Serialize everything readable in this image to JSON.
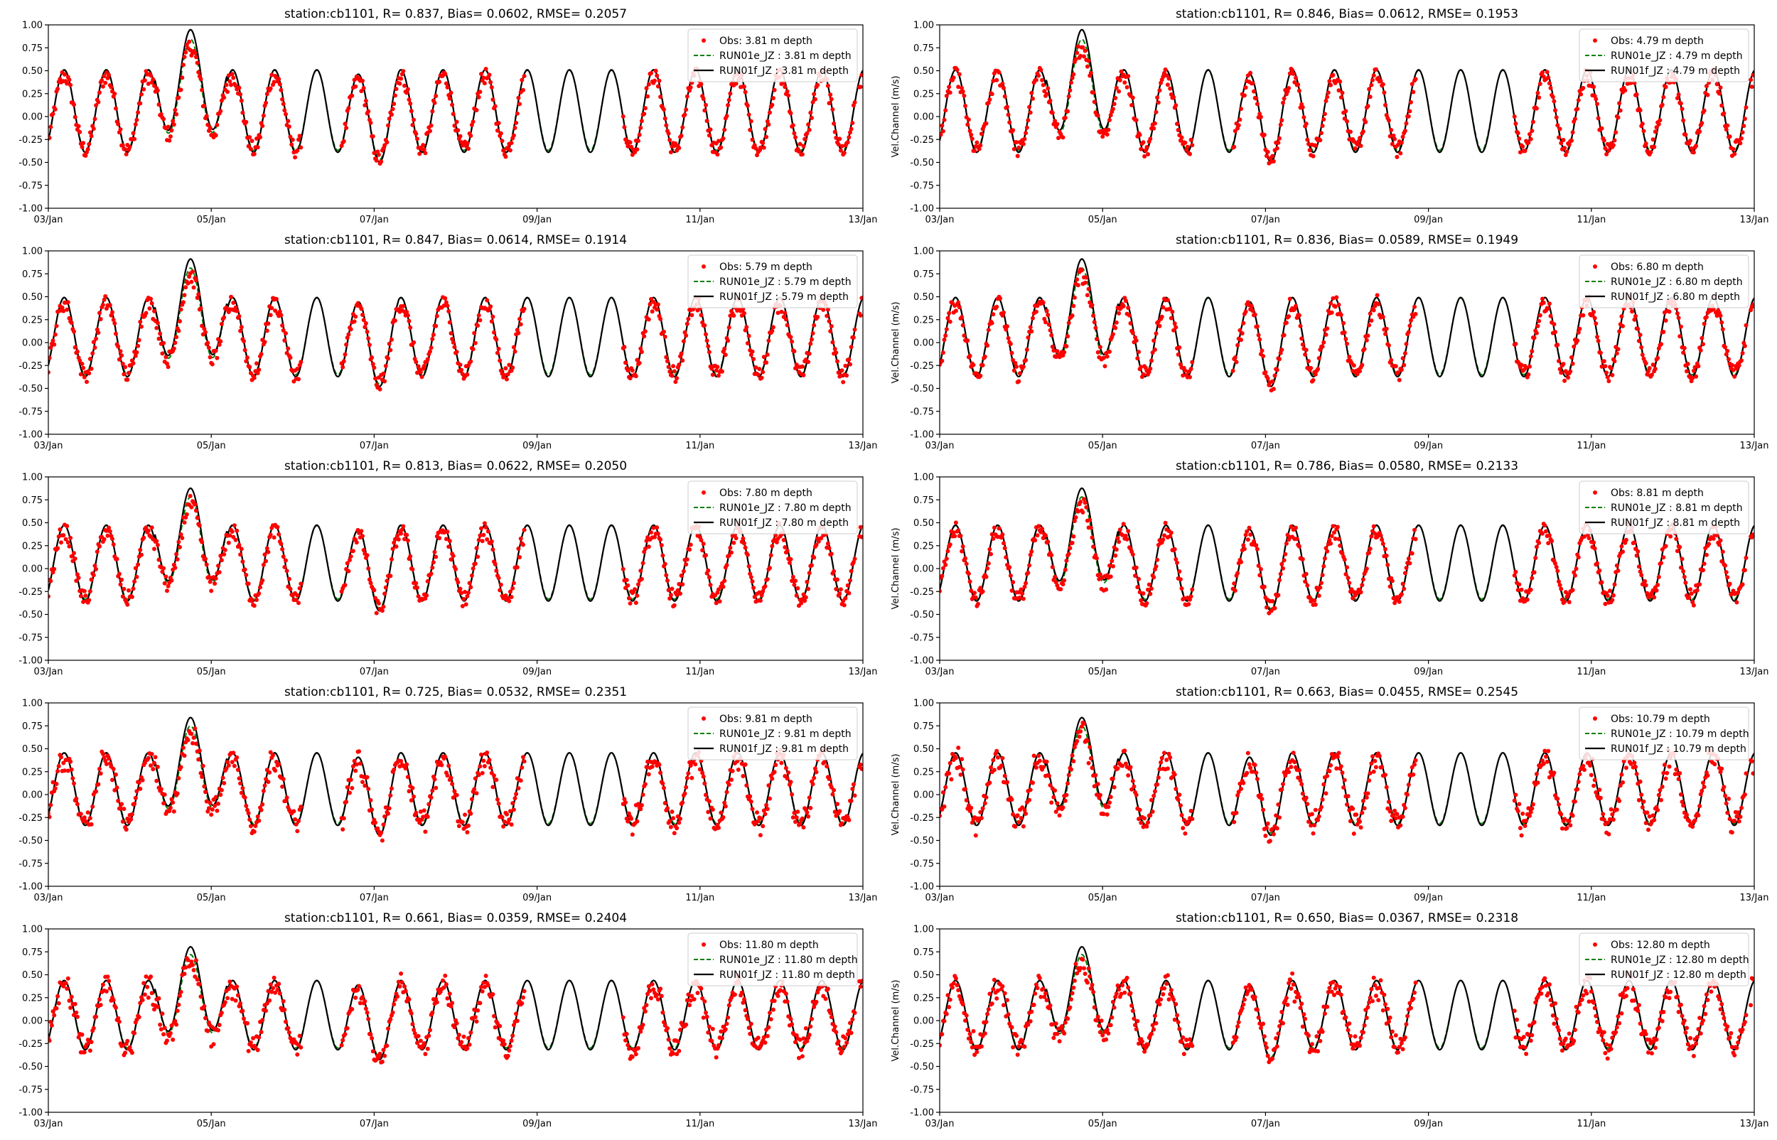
{
  "colors": {
    "obs": "#ff0000",
    "run01e": "#008000",
    "run01f": "#000000"
  },
  "chart_data": [
    {
      "type": "line",
      "title": "station:cb1101, R= 0.837, Bias= 0.0602, RMSE= 0.2057",
      "xlabel": "",
      "ylabel": "",
      "legend": [
        "Obs: 3.81 m depth",
        "RUN01e_JZ : 3.81 m depth",
        "RUN01f_JZ : 3.81 m depth"
      ],
      "legend_position": "top-right",
      "x_ticks": [
        "03/Jan",
        "05/Jan",
        "07/Jan",
        "09/Jan",
        "11/Jan",
        "13/Jan"
      ],
      "ylim": [
        -1.0,
        1.0
      ],
      "y_ticks": [
        "-1.00",
        "-0.75",
        "-0.50",
        "-0.25",
        "0.00",
        "0.25",
        "0.50",
        "0.75",
        "1.00"
      ],
      "series": [
        {
          "name": "Obs: 3.81 m depth",
          "style": "scatter"
        },
        {
          "name": "RUN01e_JZ : 3.81 m depth",
          "style": "dashed"
        },
        {
          "name": "RUN01f_JZ : 3.81 m depth",
          "style": "solid"
        }
      ]
    },
    {
      "type": "line",
      "title": "station:cb1101, R= 0.846, Bias= 0.0612, RMSE= 0.1953",
      "xlabel": "",
      "ylabel": "Vel.Channel (m/s)",
      "legend": [
        "Obs: 4.79 m depth",
        "RUN01e_JZ : 4.79 m depth",
        "RUN01f_JZ : 4.79 m depth"
      ],
      "legend_position": "top-right",
      "x_ticks": [
        "03/Jan",
        "05/Jan",
        "07/Jan",
        "09/Jan",
        "11/Jan",
        "13/Jan"
      ],
      "ylim": [
        -1.0,
        1.0
      ],
      "y_ticks": [
        "-1.00",
        "-0.75",
        "-0.50",
        "-0.25",
        "0.00",
        "0.25",
        "0.50",
        "0.75",
        "1.00"
      ],
      "series": [
        {
          "name": "Obs: 4.79 m depth",
          "style": "scatter"
        },
        {
          "name": "RUN01e_JZ : 4.79 m depth",
          "style": "dashed"
        },
        {
          "name": "RUN01f_JZ : 4.79 m depth",
          "style": "solid"
        }
      ]
    },
    {
      "type": "line",
      "title": "station:cb1101, R= 0.847, Bias= 0.0614, RMSE= 0.1914",
      "xlabel": "",
      "ylabel": "",
      "legend": [
        "Obs: 5.79 m depth",
        "RUN01e_JZ : 5.79 m depth",
        "RUN01f_JZ : 5.79 m depth"
      ],
      "legend_position": "top-right",
      "x_ticks": [
        "03/Jan",
        "05/Jan",
        "07/Jan",
        "09/Jan",
        "11/Jan",
        "13/Jan"
      ],
      "ylim": [
        -1.0,
        1.0
      ],
      "y_ticks": [
        "-1.00",
        "-0.75",
        "-0.50",
        "-0.25",
        "0.00",
        "0.25",
        "0.50",
        "0.75",
        "1.00"
      ],
      "series": [
        {
          "name": "Obs: 5.79 m depth",
          "style": "scatter"
        },
        {
          "name": "RUN01e_JZ : 5.79 m depth",
          "style": "dashed"
        },
        {
          "name": "RUN01f_JZ : 5.79 m depth",
          "style": "solid"
        }
      ]
    },
    {
      "type": "line",
      "title": "station:cb1101, R= 0.836, Bias= 0.0589, RMSE= 0.1949",
      "xlabel": "",
      "ylabel": "Vel.Channel (m/s)",
      "legend": [
        "Obs: 6.80 m depth",
        "RUN01e_JZ : 6.80 m depth",
        "RUN01f_JZ : 6.80 m depth"
      ],
      "legend_position": "top-right",
      "x_ticks": [
        "03/Jan",
        "05/Jan",
        "07/Jan",
        "09/Jan",
        "11/Jan",
        "13/Jan"
      ],
      "ylim": [
        -1.0,
        1.0
      ],
      "y_ticks": [
        "-1.00",
        "-0.75",
        "-0.50",
        "-0.25",
        "0.00",
        "0.25",
        "0.50",
        "0.75",
        "1.00"
      ],
      "series": [
        {
          "name": "Obs: 6.80 m depth",
          "style": "scatter"
        },
        {
          "name": "RUN01e_JZ : 6.80 m depth",
          "style": "dashed"
        },
        {
          "name": "RUN01f_JZ : 6.80 m depth",
          "style": "solid"
        }
      ]
    },
    {
      "type": "line",
      "title": "station:cb1101, R= 0.813, Bias= 0.0622, RMSE= 0.2050",
      "xlabel": "",
      "ylabel": "",
      "legend": [
        "Obs: 7.80 m depth",
        "RUN01e_JZ : 7.80 m depth",
        "RUN01f_JZ : 7.80 m depth"
      ],
      "legend_position": "top-right",
      "x_ticks": [
        "03/Jan",
        "05/Jan",
        "07/Jan",
        "09/Jan",
        "11/Jan",
        "13/Jan"
      ],
      "ylim": [
        -1.0,
        1.0
      ],
      "y_ticks": [
        "-1.00",
        "-0.75",
        "-0.50",
        "-0.25",
        "0.00",
        "0.25",
        "0.50",
        "0.75",
        "1.00"
      ],
      "series": [
        {
          "name": "Obs: 7.80 m depth",
          "style": "scatter"
        },
        {
          "name": "RUN01e_JZ : 7.80 m depth",
          "style": "dashed"
        },
        {
          "name": "RUN01f_JZ : 7.80 m depth",
          "style": "solid"
        }
      ]
    },
    {
      "type": "line",
      "title": "station:cb1101, R= 0.786, Bias= 0.0580, RMSE= 0.2133",
      "xlabel": "",
      "ylabel": "Vel.Channel (m/s)",
      "legend": [
        "Obs: 8.81 m depth",
        "RUN01e_JZ : 8.81 m depth",
        "RUN01f_JZ : 8.81 m depth"
      ],
      "legend_position": "top-right",
      "x_ticks": [
        "03/Jan",
        "05/Jan",
        "07/Jan",
        "09/Jan",
        "11/Jan",
        "13/Jan"
      ],
      "ylim": [
        -1.0,
        1.0
      ],
      "y_ticks": [
        "-1.00",
        "-0.75",
        "-0.50",
        "-0.25",
        "0.00",
        "0.25",
        "0.50",
        "0.75",
        "1.00"
      ],
      "series": [
        {
          "name": "Obs: 8.81 m depth",
          "style": "scatter"
        },
        {
          "name": "RUN01e_JZ : 8.81 m depth",
          "style": "dashed"
        },
        {
          "name": "RUN01f_JZ : 8.81 m depth",
          "style": "solid"
        }
      ]
    },
    {
      "type": "line",
      "title": "station:cb1101, R= 0.725, Bias= 0.0532, RMSE= 0.2351",
      "xlabel": "",
      "ylabel": "",
      "legend": [
        "Obs: 9.81 m depth",
        "RUN01e_JZ : 9.81 m depth",
        "RUN01f_JZ : 9.81 m depth"
      ],
      "legend_position": "top-right",
      "x_ticks": [
        "03/Jan",
        "05/Jan",
        "07/Jan",
        "09/Jan",
        "11/Jan",
        "13/Jan"
      ],
      "ylim": [
        -1.0,
        1.0
      ],
      "y_ticks": [
        "-1.00",
        "-0.75",
        "-0.50",
        "-0.25",
        "0.00",
        "0.25",
        "0.50",
        "0.75",
        "1.00"
      ],
      "series": [
        {
          "name": "Obs: 9.81 m depth",
          "style": "scatter"
        },
        {
          "name": "RUN01e_JZ : 9.81 m depth",
          "style": "dashed"
        },
        {
          "name": "RUN01f_JZ : 9.81 m depth",
          "style": "solid"
        }
      ]
    },
    {
      "type": "line",
      "title": "station:cb1101, R= 0.663, Bias= 0.0455, RMSE= 0.2545",
      "xlabel": "",
      "ylabel": "Vel.Channel (m/s)",
      "legend": [
        "Obs: 10.79 m depth",
        "RUN01e_JZ : 10.79 m depth",
        "RUN01f_JZ : 10.79 m depth"
      ],
      "legend_position": "top-right",
      "x_ticks": [
        "03/Jan",
        "05/Jan",
        "07/Jan",
        "09/Jan",
        "11/Jan",
        "13/Jan"
      ],
      "ylim": [
        -1.0,
        1.0
      ],
      "y_ticks": [
        "-1.00",
        "-0.75",
        "-0.50",
        "-0.25",
        "0.00",
        "0.25",
        "0.50",
        "0.75",
        "1.00"
      ],
      "series": [
        {
          "name": "Obs: 10.79 m depth",
          "style": "scatter"
        },
        {
          "name": "RUN01e_JZ : 10.79 m depth",
          "style": "dashed"
        },
        {
          "name": "RUN01f_JZ : 10.79 m depth",
          "style": "solid"
        }
      ]
    },
    {
      "type": "line",
      "title": "station:cb1101, R= 0.661, Bias= 0.0359, RMSE= 0.2404",
      "xlabel": "",
      "ylabel": "",
      "legend": [
        "Obs: 11.80 m depth",
        "RUN01e_JZ : 11.80 m depth",
        "RUN01f_JZ : 11.80 m depth"
      ],
      "legend_position": "top-right",
      "x_ticks": [
        "03/Jan",
        "05/Jan",
        "07/Jan",
        "09/Jan",
        "11/Jan",
        "13/Jan"
      ],
      "ylim": [
        -1.0,
        1.0
      ],
      "y_ticks": [
        "-1.00",
        "-0.75",
        "-0.50",
        "-0.25",
        "0.00",
        "0.25",
        "0.50",
        "0.75",
        "1.00"
      ],
      "series": [
        {
          "name": "Obs: 11.80 m depth",
          "style": "scatter"
        },
        {
          "name": "RUN01e_JZ : 11.80 m depth",
          "style": "dashed"
        },
        {
          "name": "RUN01f_JZ : 11.80 m depth",
          "style": "solid"
        }
      ]
    },
    {
      "type": "line",
      "title": "station:cb1101, R= 0.650, Bias= 0.0367, RMSE= 0.2318",
      "xlabel": "",
      "ylabel": "Vel.Channel (m/s)",
      "legend": [
        "Obs: 12.80 m depth",
        "RUN01e_JZ : 12.80 m depth",
        "RUN01f_JZ : 12.80 m depth"
      ],
      "legend_position": "top-right",
      "x_ticks": [
        "03/Jan",
        "05/Jan",
        "07/Jan",
        "09/Jan",
        "11/Jan",
        "13/Jan"
      ],
      "ylim": [
        -1.0,
        1.0
      ],
      "y_ticks": [
        "-1.00",
        "-0.75",
        "-0.50",
        "-0.25",
        "0.00",
        "0.25",
        "0.50",
        "0.75",
        "1.00"
      ],
      "series": [
        {
          "name": "Obs: 12.80 m depth",
          "style": "scatter"
        },
        {
          "name": "RUN01e_JZ : 12.80 m depth",
          "style": "dashed"
        },
        {
          "name": "RUN01f_JZ : 12.80 m depth",
          "style": "solid"
        }
      ]
    }
  ]
}
